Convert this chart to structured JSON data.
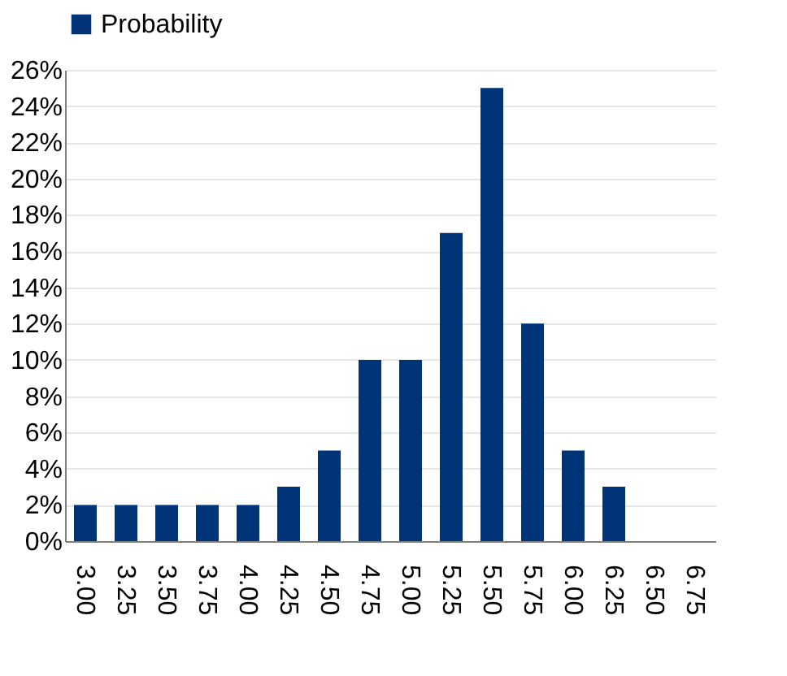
{
  "chart_data": {
    "type": "bar",
    "categories": [
      "3.00",
      "3.25",
      "3.50",
      "3.75",
      "4.00",
      "4.25",
      "4.50",
      "4.75",
      "5.00",
      "5.25",
      "5.50",
      "5.75",
      "6.00",
      "6.25",
      "6.50",
      "6.75"
    ],
    "series": [
      {
        "name": "Probability",
        "color": "#003478",
        "values": [
          2,
          2,
          2,
          2,
          2,
          3,
          5,
          10,
          10,
          17,
          25,
          12,
          5,
          3,
          0,
          0
        ]
      }
    ],
    "ylim": [
      0,
      26
    ],
    "yticks": [
      {
        "value": 0,
        "label": "0%"
      },
      {
        "value": 2,
        "label": "2%"
      },
      {
        "value": 4,
        "label": "4%"
      },
      {
        "value": 6,
        "label": "6%"
      },
      {
        "value": 8,
        "label": "8%"
      },
      {
        "value": 10,
        "label": "10%"
      },
      {
        "value": 12,
        "label": "12%"
      },
      {
        "value": 14,
        "label": "14%"
      },
      {
        "value": 16,
        "label": "16%"
      },
      {
        "value": 18,
        "label": "18%"
      },
      {
        "value": 20,
        "label": "20%"
      },
      {
        "value": 22,
        "label": "22%"
      },
      {
        "value": 24,
        "label": "24%"
      },
      {
        "value": 26,
        "label": "26%"
      }
    ],
    "grid": "y",
    "legend": "top"
  }
}
